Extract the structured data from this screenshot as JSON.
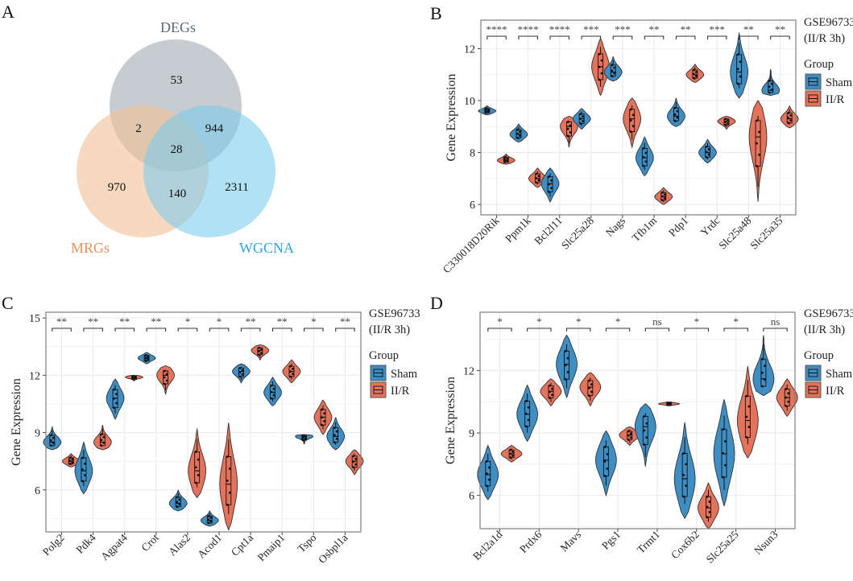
{
  "colors": {
    "sham": "#3e8ec4",
    "ir": "#e5735c",
    "degs": "#a3adb3",
    "mrgs": "#f2c29a",
    "wgcna": "#79ccec",
    "degs_text": "#5a6b75",
    "mrgs_text": "#e8915a",
    "wgcna_text": "#2aa7dc",
    "grid": "#ebebeb",
    "frame": "#7f7f7f"
  },
  "chart_data": [
    {
      "panel": "A",
      "type": "venn",
      "sets": [
        "DEGs",
        "MRGs",
        "WGCNA"
      ],
      "regions": {
        "DEGs_only": 53,
        "MRGs_only": 970,
        "WGCNA_only": 2311,
        "DEGs_MRGs": 2,
        "DEGs_WGCNA": 944,
        "MRGs_WGCNA": 140,
        "all_three": 28
      }
    },
    {
      "panel": "B",
      "type": "violin",
      "ylabel": "Gene Expression",
      "ylim": [
        5.6,
        13.1
      ],
      "yticks": [
        6,
        8,
        10,
        12
      ],
      "legend_title_line1": "GSE96733",
      "legend_title_line2": "(II/R 3h)",
      "legend_group_title": "Group",
      "groups": [
        "Sham",
        "II/R"
      ],
      "grid": true,
      "categories": [
        "C330018D20Rik",
        "Ppm1k",
        "Bcl2l11",
        "Slc25a28",
        "Nags",
        "Tfb1m",
        "Pdp1",
        "Yrdc",
        "Slc25a48",
        "Slc25a35"
      ],
      "significance": [
        "****",
        "****",
        "****",
        "***",
        "***",
        "**",
        "**",
        "***",
        "**",
        "**"
      ],
      "series": [
        {
          "name": "Sham",
          "median": [
            9.6,
            8.7,
            6.8,
            9.3,
            11.1,
            7.8,
            9.4,
            8.0,
            11.1,
            10.4
          ],
          "min": [
            9.45,
            8.4,
            6.1,
            8.9,
            10.75,
            7.1,
            9.0,
            7.6,
            10.1,
            10.2
          ],
          "max": [
            9.8,
            9.1,
            7.4,
            9.7,
            11.7,
            8.6,
            10.1,
            8.5,
            12.6,
            11.2
          ]
        },
        {
          "name": "II/R",
          "median": [
            7.7,
            7.0,
            9.0,
            11.3,
            9.3,
            6.3,
            11.0,
            9.2,
            8.6,
            9.3
          ],
          "min": [
            7.55,
            6.65,
            8.2,
            10.2,
            8.2,
            6.0,
            10.7,
            8.9,
            6.1,
            8.95
          ],
          "max": [
            7.95,
            7.4,
            9.4,
            12.4,
            10.1,
            6.65,
            11.4,
            9.4,
            10.0,
            9.8
          ]
        }
      ]
    },
    {
      "panel": "C",
      "type": "violin",
      "ylabel": "Gene Expression",
      "ylim": [
        3.8,
        15.3
      ],
      "yticks": [
        6,
        9,
        12,
        15
      ],
      "legend_title_line1": "GSE96733",
      "legend_title_line2": "(II/R 3h)",
      "legend_group_title": "Group",
      "groups": [
        "Sham",
        "II/R"
      ],
      "grid": true,
      "categories": [
        "Polg2",
        "Pdk4",
        "Agpat4",
        "Crot",
        "Alas2",
        "Acod1",
        "Cpt1a",
        "Pmaip1",
        "Tspo",
        "Osbpl1a"
      ],
      "significance": [
        "**",
        "**",
        "**",
        "**",
        "*",
        "*",
        "**",
        "**",
        "*",
        "**"
      ],
      "series": [
        {
          "name": "Sham",
          "median": [
            8.5,
            7.0,
            10.8,
            12.9,
            5.3,
            4.4,
            12.2,
            11.1,
            8.8,
            8.8
          ],
          "min": [
            8.1,
            5.8,
            9.7,
            12.6,
            4.9,
            4.1,
            11.6,
            10.4,
            8.4,
            8.1
          ],
          "max": [
            9.3,
            8.5,
            11.8,
            13.2,
            6.0,
            4.9,
            12.6,
            11.9,
            8.9,
            9.8
          ]
        },
        {
          "name": "II/R",
          "median": [
            7.5,
            8.5,
            11.9,
            12.0,
            7.0,
            6.3,
            13.3,
            12.2,
            9.8,
            7.5
          ],
          "min": [
            7.2,
            8.1,
            11.7,
            11.0,
            5.6,
            3.9,
            12.8,
            11.6,
            8.9,
            6.8
          ],
          "max": [
            7.9,
            9.4,
            12.0,
            12.5,
            9.2,
            9.5,
            13.6,
            12.8,
            10.7,
            8.1
          ]
        }
      ]
    },
    {
      "panel": "D",
      "type": "violin",
      "ylabel": "Gene Expression",
      "ylim": [
        4.4,
        14.8
      ],
      "yticks": [
        6,
        9,
        12
      ],
      "legend_title_line1": "GSE96733",
      "legend_title_line2": "(II/R 3h)",
      "legend_group_title": "Group",
      "groups": [
        "Sham",
        "II/R"
      ],
      "grid": true,
      "categories": [
        "Bcl2a1d",
        "Prdx6",
        "Mavs",
        "Pgs1",
        "Trmt1",
        "Cox6b2",
        "Slc25a25",
        "Nsun3"
      ],
      "significance": [
        "*",
        "*",
        "*",
        "*",
        "ns",
        "*",
        "*",
        "ns"
      ],
      "series": [
        {
          "name": "Sham",
          "median": [
            7.0,
            9.9,
            12.3,
            7.7,
            9.3,
            6.8,
            8.0,
            11.6
          ],
          "min": [
            5.8,
            8.6,
            10.7,
            6.0,
            7.4,
            4.9,
            5.5,
            10.8
          ],
          "max": [
            8.4,
            11.3,
            13.7,
            9.1,
            10.4,
            9.5,
            10.6,
            13.7
          ]
        },
        {
          "name": "II/R",
          "median": [
            8.0,
            11.0,
            11.2,
            8.9,
            10.4,
            5.4,
            9.6,
            10.7
          ],
          "min": [
            7.6,
            10.3,
            10.3,
            8.4,
            10.3,
            4.4,
            7.8,
            9.8
          ],
          "max": [
            8.4,
            11.6,
            11.9,
            9.3,
            10.5,
            6.6,
            12.2,
            11.6
          ]
        }
      ]
    }
  ],
  "panels": {
    "A": {
      "letter": "A"
    },
    "B": {
      "letter": "B"
    },
    "C": {
      "letter": "C"
    },
    "D": {
      "letter": "D"
    }
  }
}
